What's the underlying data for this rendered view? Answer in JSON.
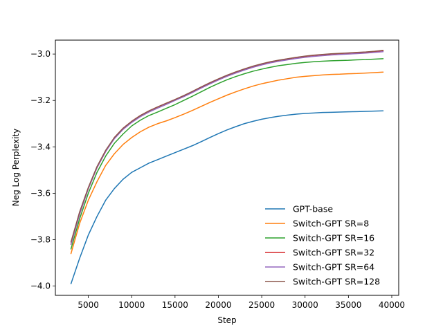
{
  "chart_data": {
    "type": "line",
    "title": "",
    "xlabel": "Step",
    "ylabel": "Neg Log Perplexity",
    "xlim": [
      1200,
      40800
    ],
    "ylim": [
      -4.04,
      -2.94
    ],
    "xticks": [
      5000,
      10000,
      15000,
      20000,
      25000,
      30000,
      35000,
      40000
    ],
    "xtick_labels": [
      "5000",
      "10000",
      "15000",
      "20000",
      "25000",
      "30000",
      "35000",
      "40000"
    ],
    "yticks": [
      -4.0,
      -3.8,
      -3.6,
      -3.4,
      -3.2,
      -3.0
    ],
    "ytick_labels": [
      "−4.0",
      "−3.8",
      "−3.6",
      "−3.4",
      "−3.2",
      "−3.0"
    ],
    "grid": false,
    "legend_position": "lower-right",
    "x": [
      3000,
      4000,
      5000,
      6000,
      7000,
      8000,
      9000,
      10000,
      11000,
      12000,
      13000,
      14000,
      15000,
      16000,
      17000,
      18000,
      19000,
      20000,
      21000,
      22000,
      23000,
      24000,
      25000,
      26000,
      27000,
      28000,
      29000,
      30000,
      31000,
      32000,
      33000,
      34000,
      35000,
      36000,
      37000,
      38000,
      39000
    ],
    "series": [
      {
        "name": "GPT-base",
        "color": "#1f77b4",
        "values": [
          -3.99,
          -3.88,
          -3.78,
          -3.7,
          -3.63,
          -3.58,
          -3.54,
          -3.51,
          -3.49,
          -3.47,
          -3.455,
          -3.44,
          -3.425,
          -3.41,
          -3.395,
          -3.378,
          -3.36,
          -3.343,
          -3.327,
          -3.313,
          -3.3,
          -3.29,
          -3.281,
          -3.274,
          -3.268,
          -3.263,
          -3.259,
          -3.256,
          -3.254,
          -3.252,
          -3.251,
          -3.25,
          -3.249,
          -3.248,
          -3.247,
          -3.246,
          -3.245
        ]
      },
      {
        "name": "Switch-GPT SR=8",
        "color": "#ff7f0e",
        "values": [
          -3.86,
          -3.73,
          -3.63,
          -3.55,
          -3.48,
          -3.43,
          -3.39,
          -3.36,
          -3.335,
          -3.315,
          -3.3,
          -3.288,
          -3.274,
          -3.259,
          -3.243,
          -3.226,
          -3.209,
          -3.193,
          -3.177,
          -3.163,
          -3.15,
          -3.138,
          -3.128,
          -3.12,
          -3.112,
          -3.106,
          -3.1,
          -3.096,
          -3.093,
          -3.09,
          -3.088,
          -3.087,
          -3.085,
          -3.084,
          -3.082,
          -3.08,
          -3.078
        ]
      },
      {
        "name": "Switch-GPT SR=16",
        "color": "#2ca02c",
        "values": [
          -3.84,
          -3.71,
          -3.6,
          -3.51,
          -3.44,
          -3.385,
          -3.345,
          -3.31,
          -3.285,
          -3.265,
          -3.25,
          -3.234,
          -3.218,
          -3.2,
          -3.182,
          -3.163,
          -3.144,
          -3.127,
          -3.111,
          -3.097,
          -3.085,
          -3.074,
          -3.065,
          -3.057,
          -3.05,
          -3.045,
          -3.04,
          -3.036,
          -3.033,
          -3.031,
          -3.029,
          -3.028,
          -3.027,
          -3.025,
          -3.024,
          -3.022,
          -3.02
        ]
      },
      {
        "name": "Switch-GPT SR=32",
        "color": "#d62728",
        "values": [
          -3.82,
          -3.69,
          -3.58,
          -3.49,
          -3.42,
          -3.36,
          -3.32,
          -3.29,
          -3.265,
          -3.245,
          -3.228,
          -3.212,
          -3.196,
          -3.18,
          -3.162,
          -3.143,
          -3.125,
          -3.108,
          -3.092,
          -3.078,
          -3.065,
          -3.053,
          -3.043,
          -3.034,
          -3.027,
          -3.021,
          -3.015,
          -3.01,
          -3.006,
          -3.003,
          -3.0,
          -2.998,
          -2.996,
          -2.994,
          -2.992,
          -2.99,
          -2.985
        ]
      },
      {
        "name": "Switch-GPT SR=64",
        "color": "#9467bd",
        "values": [
          -3.82,
          -3.69,
          -3.58,
          -3.49,
          -3.42,
          -3.365,
          -3.325,
          -3.295,
          -3.27,
          -3.25,
          -3.233,
          -3.217,
          -3.2,
          -3.184,
          -3.166,
          -3.147,
          -3.129,
          -3.112,
          -3.096,
          -3.082,
          -3.069,
          -3.057,
          -3.047,
          -3.038,
          -3.031,
          -3.025,
          -3.019,
          -3.014,
          -3.01,
          -3.007,
          -3.004,
          -3.002,
          -3.0,
          -2.998,
          -2.996,
          -2.993,
          -2.99
        ]
      },
      {
        "name": "Switch-GPT SR=128",
        "color": "#8c564b",
        "values": [
          -3.81,
          -3.68,
          -3.575,
          -3.485,
          -3.415,
          -3.36,
          -3.32,
          -3.29,
          -3.265,
          -3.245,
          -3.228,
          -3.212,
          -3.196,
          -3.179,
          -3.161,
          -3.142,
          -3.124,
          -3.107,
          -3.091,
          -3.077,
          -3.064,
          -3.052,
          -3.042,
          -3.033,
          -3.026,
          -3.02,
          -3.014,
          -3.009,
          -3.005,
          -3.002,
          -2.999,
          -2.997,
          -2.995,
          -2.993,
          -2.991,
          -2.988,
          -2.984
        ]
      }
    ]
  }
}
